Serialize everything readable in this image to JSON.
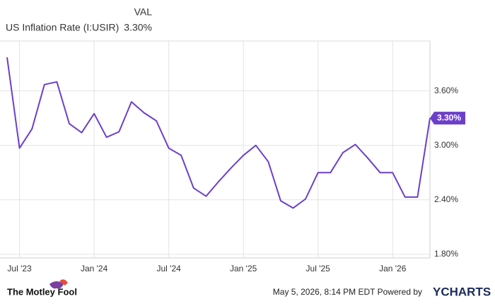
{
  "chart_data": {
    "type": "line",
    "legend_header": "VAL",
    "legend_value": "3.30%",
    "end_label": "3.30%",
    "categories": [
      null,
      "Jul '23",
      null,
      null,
      null,
      null,
      null,
      "Jan '24",
      null,
      null,
      null,
      null,
      null,
      "Jul '24",
      null,
      null,
      null,
      null,
      null,
      "Jan '25",
      null,
      null,
      null,
      null,
      null,
      "Jul '25",
      null,
      null,
      null,
      null,
      null,
      "Jan '26",
      null,
      null,
      null
    ],
    "series": [
      {
        "name": "US Inflation Rate (I:USIR)",
        "color": "#6c3fc9",
        "values": [
          3.97,
          2.97,
          3.18,
          3.67,
          3.7,
          3.24,
          3.14,
          3.35,
          3.09,
          3.15,
          3.48,
          3.36,
          3.27,
          2.97,
          2.89,
          2.53,
          2.44,
          2.6,
          2.75,
          2.89,
          3.0,
          2.82,
          2.39,
          2.31,
          2.41,
          2.7,
          2.7,
          2.92,
          3.01,
          2.86,
          2.7,
          2.7,
          2.43,
          2.43,
          3.3
        ]
      }
    ],
    "ylim": [
      1.76,
      4.15
    ],
    "yticks": [
      {
        "value": 1.8,
        "label": "1.80%"
      },
      {
        "value": 2.4,
        "label": "2.40%"
      },
      {
        "value": 3.0,
        "label": "3.00%"
      },
      {
        "value": 3.6,
        "label": "3.60%"
      }
    ],
    "grid": true,
    "footer": {
      "logo": "The Motley Fool",
      "source": "May 5, 2026, 8:14 PM EDT Powered by",
      "brand": "YCHARTS"
    }
  }
}
